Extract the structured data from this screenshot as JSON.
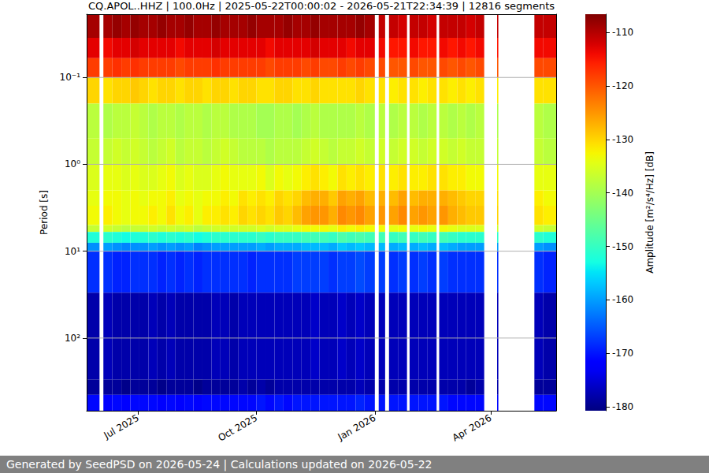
{
  "chart_data": {
    "type": "heatmap",
    "title": "CQ.APOL..HHZ | 100.0Hz | 2025-05-22T00:00:02 - 2026-05-21T22:34:39 | 12816 segments",
    "ylabel": "Period [s]",
    "colorbar_label": "Amplitude [m²/s⁴/Hz] [dB]",
    "footer": "Generated by SeedPSD on 2026-05-24 | Calculations updated on 2026-05-22",
    "log": "y",
    "grid": true,
    "xlim": [
      "2025-05-22T00:00:02",
      "2026-05-21T22:34:39"
    ],
    "xticks": [
      {
        "value": "2025-07-01",
        "label": "Jul 2025"
      },
      {
        "value": "2025-10-01",
        "label": "Oct 2025"
      },
      {
        "value": "2026-01-01",
        "label": "Jan 2026"
      },
      {
        "value": "2026-04-01",
        "label": "Apr 2026"
      }
    ],
    "ylim": [
      0.0187,
      686
    ],
    "yticks": [
      {
        "value": 0.1,
        "label": "10⁻¹"
      },
      {
        "value": 1,
        "label": "10⁰"
      },
      {
        "value": 10,
        "label": "10¹"
      },
      {
        "value": 100,
        "label": "10²"
      }
    ],
    "colorbar_range": [
      -180.7,
      -106.6
    ],
    "colorbar_ticks": [
      -180,
      -170,
      -160,
      -150,
      -140,
      -130,
      -120,
      -110
    ],
    "periods": [
      0.0187,
      0.035,
      0.06,
      0.1,
      0.2,
      0.5,
      1,
      2,
      3,
      5,
      6,
      8,
      10,
      30,
      300,
      450,
      686
    ],
    "x": [
      "2025-05-22",
      "2025-06-01",
      "2025-06-04",
      "2025-06-11",
      "2025-06-18",
      "2025-06-25",
      "2025-07-02",
      "2025-07-09",
      "2025-07-16",
      "2025-07-23",
      "2025-07-30",
      "2025-08-06",
      "2025-08-13",
      "2025-08-20",
      "2025-08-27",
      "2025-09-03",
      "2025-09-10",
      "2025-09-17",
      "2025-09-24",
      "2025-10-01",
      "2025-10-08",
      "2025-10-15",
      "2025-10-22",
      "2025-10-29",
      "2025-11-05",
      "2025-11-12",
      "2025-11-19",
      "2025-11-26",
      "2025-12-03",
      "2025-12-10",
      "2025-12-17",
      "2025-12-24",
      "2026-01-01",
      "2026-01-04",
      "2026-01-09",
      "2026-01-12",
      "2026-01-19",
      "2026-01-26",
      "2026-01-28",
      "2026-02-04",
      "2026-02-11",
      "2026-02-18",
      "2026-02-20",
      "2026-02-27",
      "2026-03-06",
      "2026-03-13",
      "2026-03-20",
      "2026-03-27",
      "2026-04-06",
      "2026-04-07",
      "2026-05-05",
      "2026-05-12"
    ],
    "values": [
      [
        -109,
        -113,
        -118,
        -130,
        -138,
        -137,
        -135,
        -134,
        -133,
        -137,
        -152,
        -161,
        -168,
        -178,
        -179,
        -171
      ],
      [
        null,
        null,
        null,
        null,
        null,
        null,
        null,
        null,
        null,
        null,
        null,
        null,
        null,
        null,
        null,
        null
      ],
      [
        -109,
        -114,
        -118,
        -131,
        -139,
        -137,
        -134,
        -133,
        -132,
        -136,
        -151,
        -160,
        -168,
        -177,
        -179,
        -172
      ],
      [
        -108,
        -113,
        -117,
        -130,
        -138,
        -136,
        -134,
        -133,
        -133,
        -137,
        -152,
        -161,
        -169,
        -178,
        -179,
        -171
      ],
      [
        -109,
        -113,
        -118,
        -130,
        -138,
        -137,
        -135,
        -134,
        -134,
        -138,
        -153,
        -162,
        -169,
        -178,
        -180,
        -172
      ],
      [
        -108,
        -112,
        -117,
        -129,
        -137,
        -136,
        -134,
        -133,
        -133,
        -137,
        -152,
        -161,
        -168,
        -178,
        -179,
        -171
      ],
      [
        -109,
        -113,
        -118,
        -130,
        -138,
        -137,
        -135,
        -134,
        -133,
        -137,
        -152,
        -161,
        -168,
        -178,
        -179,
        -171
      ],
      [
        -109,
        -113,
        -118,
        -131,
        -139,
        -138,
        -135,
        -133,
        -132,
        -136,
        -151,
        -160,
        -168,
        -177,
        -179,
        -171
      ],
      [
        -108,
        -113,
        -118,
        -130,
        -138,
        -137,
        -134,
        -133,
        -133,
        -137,
        -152,
        -161,
        -169,
        -178,
        -180,
        -172
      ],
      [
        -109,
        -113,
        -118,
        -130,
        -138,
        -136,
        -133,
        -132,
        -131,
        -136,
        -151,
        -160,
        -168,
        -177,
        -179,
        -171
      ],
      [
        -109,
        -114,
        -119,
        -131,
        -139,
        -138,
        -135,
        -134,
        -133,
        -137,
        -152,
        -161,
        -169,
        -178,
        -179,
        -172
      ],
      [
        -108,
        -113,
        -118,
        -130,
        -138,
        -137,
        -134,
        -133,
        -132,
        -136,
        -151,
        -160,
        -168,
        -178,
        -179,
        -171
      ],
      [
        -109,
        -113,
        -118,
        -130,
        -138,
        -137,
        -135,
        -134,
        -134,
        -138,
        -153,
        -162,
        -169,
        -178,
        -180,
        -172
      ],
      [
        -109,
        -113,
        -118,
        -131,
        -139,
        -138,
        -135,
        -133,
        -132,
        -137,
        -152,
        -161,
        -168,
        -178,
        -179,
        -171
      ],
      [
        -108,
        -112,
        -117,
        -130,
        -138,
        -137,
        -134,
        -133,
        -132,
        -136,
        -151,
        -160,
        -168,
        -177,
        -179,
        -171
      ],
      [
        -109,
        -113,
        -118,
        -130,
        -138,
        -136,
        -133,
        -132,
        -131,
        -136,
        -151,
        -160,
        -168,
        -177,
        -179,
        -171
      ],
      [
        -109,
        -113,
        -118,
        -131,
        -139,
        -137,
        -134,
        -133,
        -132,
        -136,
        -151,
        -160,
        -168,
        -178,
        -179,
        -171
      ],
      [
        -109,
        -113,
        -118,
        -130,
        -139,
        -138,
        -134,
        -131,
        -130,
        -136,
        -151,
        -160,
        -168,
        -177,
        -178,
        -171
      ],
      [
        -108,
        -113,
        -118,
        -130,
        -139,
        -138,
        -134,
        -132,
        -131,
        -136,
        -151,
        -160,
        -169,
        -177,
        -179,
        -171
      ],
      [
        -109,
        -113,
        -118,
        -131,
        -140,
        -138,
        -133,
        -131,
        -130,
        -135,
        -150,
        -159,
        -168,
        -177,
        -178,
        -170
      ],
      [
        -109,
        -114,
        -119,
        -131,
        -140,
        -139,
        -135,
        -132,
        -131,
        -136,
        -151,
        -160,
        -168,
        -177,
        -179,
        -171
      ],
      [
        -109,
        -113,
        -118,
        -130,
        -139,
        -138,
        -133,
        -130,
        -129,
        -135,
        -150,
        -159,
        -168,
        -177,
        -178,
        -170
      ],
      [
        -108,
        -113,
        -118,
        -130,
        -139,
        -138,
        -134,
        -131,
        -130,
        -135,
        -150,
        -159,
        -168,
        -177,
        -178,
        -171
      ],
      [
        -109,
        -113,
        -118,
        -131,
        -140,
        -138,
        -133,
        -130,
        -128,
        -134,
        -150,
        -159,
        -167,
        -177,
        -178,
        -170
      ],
      [
        -109,
        -113,
        -119,
        -131,
        -139,
        -137,
        -132,
        -128,
        -126,
        -133,
        -149,
        -158,
        -167,
        -177,
        -178,
        -170
      ],
      [
        -108,
        -112,
        -118,
        -130,
        -138,
        -136,
        -131,
        -127,
        -125,
        -133,
        -149,
        -158,
        -167,
        -176,
        -178,
        -170
      ],
      [
        -109,
        -113,
        -119,
        -131,
        -139,
        -137,
        -132,
        -127,
        -125,
        -133,
        -149,
        -158,
        -167,
        -177,
        -178,
        -170
      ],
      [
        -109,
        -113,
        -119,
        -131,
        -139,
        -138,
        -133,
        -129,
        -127,
        -134,
        -150,
        -159,
        -168,
        -177,
        -178,
        -170
      ],
      [
        -109,
        -113,
        -118,
        -131,
        -139,
        -137,
        -131,
        -126,
        -124,
        -132,
        -148,
        -157,
        -167,
        -176,
        -178,
        -170
      ],
      [
        -109,
        -114,
        -119,
        -131,
        -139,
        -137,
        -132,
        -127,
        -125,
        -133,
        -149,
        -158,
        -167,
        -177,
        -178,
        -170
      ],
      [
        -108,
        -113,
        -118,
        -130,
        -138,
        -136,
        -131,
        -126,
        -124,
        -132,
        -148,
        -157,
        -166,
        -176,
        -177,
        -169
      ],
      [
        -109,
        -113,
        -119,
        -131,
        -139,
        -137,
        -132,
        -128,
        -126,
        -133,
        -149,
        -158,
        -167,
        -177,
        -178,
        -170
      ],
      [
        null,
        null,
        null,
        null,
        null,
        null,
        null,
        null,
        null,
        null,
        null,
        null,
        null,
        null,
        null,
        null
      ],
      [
        -111,
        -114,
        -119,
        -131,
        -138,
        -136,
        -131,
        -127,
        -125,
        -133,
        -149,
        -158,
        -167,
        -177,
        -178,
        -170
      ],
      [
        null,
        null,
        null,
        null,
        null,
        null,
        null,
        null,
        null,
        null,
        null,
        null,
        null,
        null,
        null,
        null
      ],
      [
        -111,
        -115,
        -120,
        -132,
        -139,
        -137,
        -132,
        -128,
        -126,
        -134,
        -150,
        -159,
        -168,
        -177,
        -178,
        -170
      ],
      [
        -112,
        -115,
        -120,
        -131,
        -138,
        -136,
        -131,
        -126,
        -124,
        -133,
        -149,
        -158,
        -167,
        -177,
        -178,
        -170
      ],
      [
        null,
        null,
        null,
        null,
        null,
        null,
        null,
        null,
        null,
        null,
        null,
        null,
        null,
        null,
        null,
        null
      ],
      [
        -111,
        -114,
        -119,
        -131,
        -138,
        -136,
        -132,
        -128,
        -126,
        -134,
        -150,
        -159,
        -168,
        -177,
        -178,
        -170
      ],
      [
        -111,
        -115,
        -120,
        -132,
        -139,
        -137,
        -132,
        -127,
        -125,
        -133,
        -149,
        -158,
        -167,
        -177,
        -178,
        -170
      ],
      [
        -112,
        -115,
        -120,
        -131,
        -138,
        -136,
        -131,
        -127,
        -126,
        -134,
        -150,
        -159,
        -168,
        -177,
        -178,
        -170
      ],
      [
        null,
        null,
        null,
        null,
        null,
        null,
        null,
        null,
        null,
        null,
        null,
        null,
        null,
        null,
        null,
        null
      ],
      [
        -111,
        -114,
        -119,
        -131,
        -138,
        -136,
        -131,
        -127,
        -125,
        -133,
        -149,
        -158,
        -167,
        -177,
        -178,
        -170
      ],
      [
        -111,
        -115,
        -120,
        -132,
        -139,
        -137,
        -132,
        -128,
        -127,
        -134,
        -150,
        -159,
        -168,
        -177,
        -178,
        -171
      ],
      [
        -111,
        -114,
        -119,
        -131,
        -138,
        -136,
        -132,
        -129,
        -128,
        -135,
        -151,
        -160,
        -168,
        -177,
        -178,
        -171
      ],
      [
        -112,
        -115,
        -120,
        -132,
        -139,
        -137,
        -133,
        -130,
        -129,
        -135,
        -151,
        -160,
        -168,
        -177,
        -179,
        -171
      ],
      [
        -111,
        -114,
        -119,
        -131,
        -138,
        -137,
        -133,
        -130,
        -129,
        -135,
        -151,
        -160,
        -168,
        -177,
        -178,
        -171
      ],
      [
        null,
        null,
        null,
        null,
        null,
        null,
        null,
        null,
        null,
        null,
        null,
        null,
        null,
        null,
        null,
        null
      ],
      [
        -111,
        -115,
        -120,
        -132,
        -139,
        -137,
        -133,
        -131,
        -130,
        -136,
        -151,
        -160,
        -168,
        -177,
        -178,
        -171
      ],
      [
        null,
        null,
        null,
        null,
        null,
        null,
        null,
        null,
        null,
        null,
        null,
        null,
        null,
        null,
        null,
        null
      ],
      [
        -111,
        -114,
        -119,
        -131,
        -138,
        -137,
        -134,
        -132,
        -131,
        -136,
        -151,
        -160,
        -168,
        -177,
        -179,
        -171
      ],
      [
        -111,
        -114,
        -119,
        -131,
        -139,
        -138,
        -134,
        -133,
        -132,
        -137,
        -152,
        -161,
        -169,
        -178,
        -179,
        -171
      ]
    ]
  }
}
